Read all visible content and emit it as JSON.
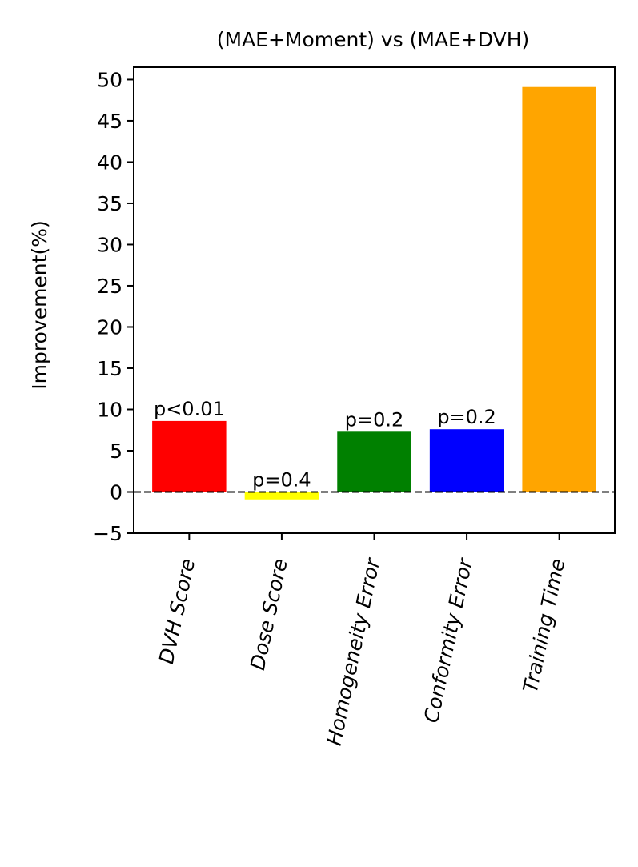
{
  "chart_data": {
    "type": "bar",
    "title": "(MAE+Moment) vs (MAE+DVH)",
    "xlabel": "",
    "ylabel": "Improvement(%)",
    "categories": [
      "DVH Score",
      "Dose Score",
      "Homogeneity Error",
      "Conformity Error",
      "Training Time"
    ],
    "values": [
      8.6,
      -0.9,
      7.3,
      7.6,
      49.1
    ],
    "colors": [
      "#ff0000",
      "#ffff00",
      "#008000",
      "#0000ff",
      "#ffa500"
    ],
    "annotations": [
      "p<0.01",
      "p=0.4",
      "p=0.2",
      "p=0.2",
      ""
    ],
    "ylim": [
      -5,
      51.5
    ],
    "yticks": [
      -5,
      0,
      5,
      10,
      15,
      20,
      25,
      30,
      35,
      40,
      45,
      50
    ],
    "ytick_labels": [
      "−5",
      "0",
      "5",
      "10",
      "15",
      "20",
      "25",
      "30",
      "35",
      "40",
      "45",
      "50"
    ],
    "reference_line": {
      "y": 0,
      "style": "dashed",
      "color": "#000000"
    },
    "grid": false,
    "legend": "none"
  }
}
